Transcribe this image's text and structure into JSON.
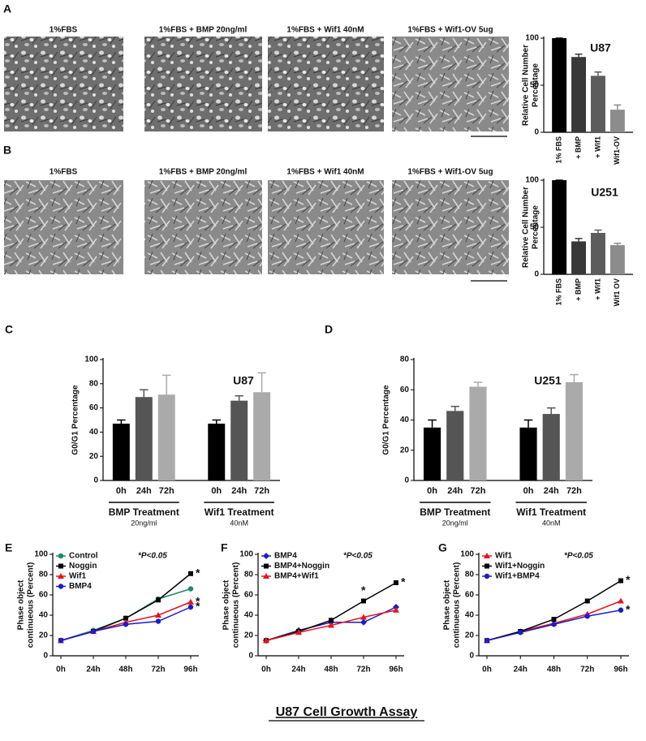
{
  "panels": {
    "labels": [
      "A",
      "B",
      "C",
      "D",
      "E",
      "F",
      "G"
    ]
  },
  "micrographs": {
    "row_a": [
      "1%FBS",
      "1%FBS + BMP 20ng/ml",
      "1%FBS + Wif1 40nM",
      "1%FBS + Wif1-OV 5ug"
    ],
    "row_b": [
      "1%FBS",
      "1%FBS + BMP 20ng/ml",
      "1%FBS + Wif1 40nM",
      "1%FBS + Wif1-OV 5ug"
    ]
  },
  "footer": "U87 Cell Growth Assay",
  "chart_data": [
    {
      "type": "bar",
      "title": "U87",
      "ylabel": [
        "Relative Cell Number",
        "Percentage"
      ],
      "categories": [
        "1% FBS",
        "+ BMP",
        "+ Wif1",
        "Wif1-OV"
      ],
      "values": [
        100,
        80,
        60,
        24
      ],
      "errors": [
        0,
        3,
        4,
        5
      ],
      "colors": [
        "#000000",
        "#383838",
        "#5c5c5c",
        "#8c8c8c"
      ],
      "ylim": [
        0,
        100
      ],
      "yticks": [
        0,
        50,
        100
      ],
      "rotate_labels": true
    },
    {
      "type": "bar",
      "title": "U251",
      "ylabel": [
        "Relative Cell Number",
        "Percentage"
      ],
      "categories": [
        "1% FBS",
        "+ BMP",
        "+ Wif1",
        "Wif1 OV"
      ],
      "values": [
        100,
        35,
        44,
        31
      ],
      "errors": [
        0,
        3,
        3,
        2
      ],
      "colors": [
        "#000000",
        "#383838",
        "#5c5c5c",
        "#8c8c8c"
      ],
      "ylim": [
        0,
        100
      ],
      "yticks": [
        0,
        50,
        100
      ],
      "rotate_labels": true
    },
    {
      "type": "bar",
      "title": "U87",
      "ylabel": [
        "G0/G1 Percentage"
      ],
      "categories": [
        "0h",
        "24h",
        "72h",
        "0h",
        "24h",
        "72h"
      ],
      "values": [
        47,
        69,
        71,
        47,
        66,
        73
      ],
      "errors": [
        3,
        6,
        16,
        3,
        4,
        16
      ],
      "colors": [
        "#000000",
        "#555555",
        "#aaaaaa",
        "#000000",
        "#555555",
        "#aaaaaa"
      ],
      "groups": [
        {
          "name": "BMP Treatment",
          "sub": "20ng/ml"
        },
        {
          "name": "Wif1 Treatment",
          "sub": "40nM"
        }
      ],
      "ylim": [
        0,
        100
      ],
      "yticks": [
        0,
        20,
        40,
        60,
        80,
        100
      ]
    },
    {
      "type": "bar",
      "title": "U251",
      "ylabel": [
        "G0/G1 Percentage"
      ],
      "categories": [
        "0h",
        "24h",
        "72h",
        "0h",
        "24h",
        "72h"
      ],
      "values": [
        35,
        46,
        62,
        35,
        44,
        65
      ],
      "errors": [
        5,
        3,
        3,
        5,
        4,
        5
      ],
      "colors": [
        "#000000",
        "#555555",
        "#aaaaaa",
        "#000000",
        "#555555",
        "#aaaaaa"
      ],
      "groups": [
        {
          "name": "BMP Treatment",
          "sub": "20ng/ml"
        },
        {
          "name": "Wif1 Treatment",
          "sub": "40nM"
        }
      ],
      "ylim": [
        0,
        80
      ],
      "yticks": [
        0,
        20,
        40,
        60,
        80
      ]
    },
    {
      "type": "line",
      "annotation": "*P<0.05",
      "ylabel": [
        "Phase object",
        "continueous (Percent)"
      ],
      "categories": [
        "0h",
        "24h",
        "48h",
        "72h",
        "96h"
      ],
      "ylim": [
        0,
        100
      ],
      "yticks": [
        0,
        20,
        40,
        60,
        80,
        100
      ],
      "series": [
        {
          "name": "Control",
          "color": "#1a8a6a",
          "marker": "circle",
          "values": [
            15,
            25,
            37,
            56,
            66
          ]
        },
        {
          "name": "Noggin",
          "color": "#000000",
          "marker": "square",
          "values": [
            15,
            24,
            37,
            55,
            81
          ]
        },
        {
          "name": "Wif1",
          "color": "#e8141c",
          "marker": "triangle",
          "values": [
            15,
            24,
            33,
            40,
            53
          ]
        },
        {
          "name": "BMP4",
          "color": "#1c1cc8",
          "marker": "circle",
          "values": [
            15,
            24,
            31,
            34,
            48
          ]
        }
      ],
      "significance": [
        {
          "series": 1,
          "index": 4,
          "label": "*"
        },
        {
          "series": 2,
          "index": 4,
          "label": "*"
        },
        {
          "series": 3,
          "index": 4,
          "label": "*"
        }
      ]
    },
    {
      "type": "line",
      "annotation": "*P<0.05",
      "ylabel": [
        "Phase object",
        "continueous (Percent)"
      ],
      "categories": [
        "0h",
        "24h",
        "48h",
        "72h",
        "96h"
      ],
      "ylim": [
        0,
        100
      ],
      "yticks": [
        0,
        20,
        40,
        60,
        80,
        100
      ],
      "series": [
        {
          "name": "BMP4",
          "color": "#1c1cc8",
          "marker": "diamond",
          "values": [
            15,
            25,
            33,
            33,
            48
          ]
        },
        {
          "name": "BMP4+Noggin",
          "color": "#000000",
          "marker": "square",
          "values": [
            15,
            24,
            35,
            54,
            72
          ]
        },
        {
          "name": "BMP4+Wif1",
          "color": "#e8141c",
          "marker": "triangle",
          "values": [
            15,
            23,
            30,
            38,
            45
          ]
        }
      ],
      "significance": [
        {
          "series": 1,
          "index": 3,
          "label": "*"
        },
        {
          "series": 1,
          "index": 4,
          "label": "*"
        }
      ]
    },
    {
      "type": "line",
      "annotation": "*P<0.05",
      "ylabel": [
        "Phase object",
        "continueous (Percent)"
      ],
      "categories": [
        "0h",
        "24h",
        "48h",
        "72h",
        "96h"
      ],
      "ylim": [
        0,
        100
      ],
      "yticks": [
        0,
        20,
        40,
        60,
        80,
        100
      ],
      "series": [
        {
          "name": "Wif1",
          "color": "#e8141c",
          "marker": "triangle",
          "values": [
            15,
            24,
            32,
            41,
            54
          ]
        },
        {
          "name": "Wif1+Noggin",
          "color": "#000000",
          "marker": "square",
          "values": [
            15,
            24,
            36,
            54,
            74
          ]
        },
        {
          "name": "Wif1+BMP4",
          "color": "#1c1cc8",
          "marker": "circle",
          "values": [
            15,
            23,
            31,
            39,
            45
          ]
        }
      ],
      "significance": [
        {
          "series": 1,
          "index": 4,
          "label": "*"
        },
        {
          "series": 2,
          "index": 4,
          "label": "*"
        }
      ]
    }
  ]
}
